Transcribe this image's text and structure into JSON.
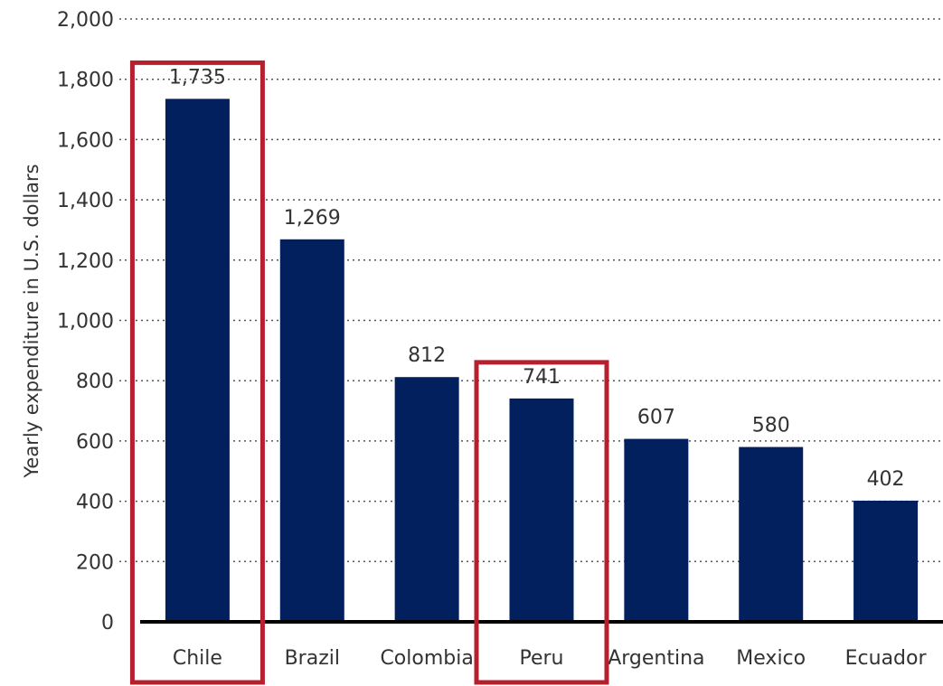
{
  "chart_data": {
    "type": "bar",
    "categories": [
      "Chile",
      "Brazil",
      "Colombia",
      "Peru",
      "Argentina",
      "Mexico",
      "Ecuador"
    ],
    "values": [
      1735,
      1269,
      812,
      741,
      607,
      580,
      402
    ],
    "value_labels": [
      "1,735",
      "1,269",
      "812",
      "741",
      "607",
      "580",
      "402"
    ],
    "ylabel": "Yearly expenditure in U.S. dollars",
    "ylim": [
      0,
      2000
    ],
    "yticks": [
      0,
      200,
      400,
      600,
      800,
      1000,
      1200,
      1400,
      1600,
      1800,
      2000
    ],
    "ytick_labels": [
      "0",
      "200",
      "400",
      "600",
      "800",
      "1,000",
      "1,200",
      "1,400",
      "1,600",
      "1,800",
      "2,000"
    ],
    "grid": true,
    "highlighted_categories": [
      "Chile",
      "Peru"
    ],
    "colors": {
      "bar": "#03205e",
      "highlight_box": "#b5202f",
      "gridline": "#555555",
      "baseline": "#000000",
      "text": "#333333"
    }
  }
}
